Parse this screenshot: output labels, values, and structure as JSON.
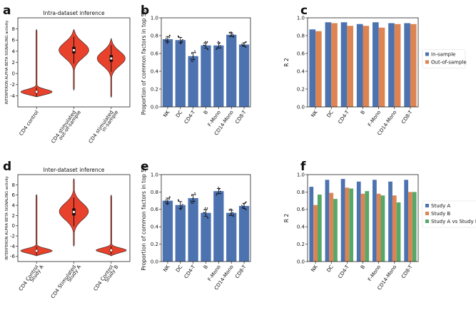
{
  "panel_labels": [
    "a",
    "b",
    "c",
    "d",
    "e",
    "f"
  ],
  "colors": {
    "violin": "#e8412c",
    "bar_blue": "#4c72b0",
    "bar_orange": "#dd8452",
    "bar_green": "#55a868",
    "box": "#111111",
    "median": "#ffffff"
  },
  "chart_data": [
    {
      "id": "a",
      "type": "violin",
      "title": "Intra-dataset inference",
      "ylabel": "INTERFERON ALPHA BETA SIGNALING activity",
      "ylim": [
        -6,
        10
      ],
      "yticks": [
        -4,
        -2,
        0,
        2,
        4,
        6,
        8
      ],
      "categories": [
        "CD4 control",
        "CD4 stimulated out-of-sample",
        "CD4 stimulated in-sample"
      ],
      "category_lines": [
        [
          "CD4 control"
        ],
        [
          "CD4 stimulated",
          "out-of-sample"
        ],
        [
          "CD4 stimulated",
          "in-sample"
        ]
      ],
      "violins": [
        {
          "min": -4.2,
          "max": 7.9,
          "median": -3.3,
          "q1": -3.5,
          "q3": -3.1,
          "mode": -3.3,
          "maxwidth": 0.85,
          "sigma": 0.45
        },
        {
          "min": -3.0,
          "max": 7.9,
          "median": 4.2,
          "q1": 3.6,
          "q3": 4.8,
          "mode": 4.2,
          "maxwidth": 0.8,
          "sigma": 1.4
        },
        {
          "min": -4.3,
          "max": 6.3,
          "median": 2.7,
          "q1": 2.1,
          "q3": 3.3,
          "mode": 2.7,
          "maxwidth": 0.75,
          "sigma": 1.3
        }
      ]
    },
    {
      "id": "b",
      "type": "bar",
      "ylabel": "Proportion of common factors in top 50",
      "ylim": [
        0,
        1.0
      ],
      "yticks": [
        0.0,
        0.2,
        0.4,
        0.6,
        0.8,
        1.0
      ],
      "categories": [
        "NK",
        "DC",
        "CD4-T",
        "B",
        "F-Mono",
        "CD14-Mono",
        "CD8-T"
      ],
      "values": [
        0.76,
        0.75,
        0.57,
        0.69,
        0.69,
        0.81,
        0.7
      ],
      "errors": [
        0.03,
        0.03,
        0.04,
        0.03,
        0.03,
        0.02,
        0.02
      ]
    },
    {
      "id": "c",
      "type": "bar",
      "ylabel": "R 2",
      "ylim": [
        0,
        1.0
      ],
      "yticks": [
        0.0,
        0.2,
        0.4,
        0.6,
        0.8,
        1.0
      ],
      "categories": [
        "NK",
        "DC",
        "CD4-T",
        "B",
        "F-Mono",
        "CD14-Mono",
        "CD8-T"
      ],
      "series": [
        {
          "name": "In-sample",
          "values": [
            0.87,
            0.95,
            0.95,
            0.93,
            0.95,
            0.94,
            0.94
          ]
        },
        {
          "name": "Out-of-sample",
          "values": [
            0.85,
            0.94,
            0.91,
            0.91,
            0.89,
            0.93,
            0.93
          ]
        }
      ],
      "legend": "center-right"
    },
    {
      "id": "d",
      "type": "violin",
      "title": "Inter-dataset inference",
      "ylabel": "INTERFERON ALPHA BETA SIGNALING activity",
      "ylim": [
        -7,
        10
      ],
      "yticks": [
        -6,
        -4,
        -2,
        0,
        2,
        4,
        6,
        8
      ],
      "categories": [
        "CD4 Control Study A",
        "CD4 Stimulated Study A",
        "CD4 Control Study B"
      ],
      "category_lines": [
        [
          "CD4 Control",
          "Study A"
        ],
        [
          "CD4 Stimulated",
          "Study A"
        ],
        [
          "CD4 Control",
          "Study B"
        ]
      ],
      "violins": [
        {
          "min": -5.9,
          "max": 6.1,
          "median": -4.9,
          "q1": -5.1,
          "q3": -4.7,
          "mode": -4.9,
          "maxwidth": 0.85,
          "sigma": 0.45
        },
        {
          "min": -4.0,
          "max": 9.2,
          "median": 2.7,
          "q1": 2.0,
          "q3": 3.4,
          "mode": 2.8,
          "maxwidth": 0.78,
          "sigma": 1.6
        },
        {
          "min": -5.9,
          "max": 6.0,
          "median": -4.8,
          "q1": -5.0,
          "q3": -4.6,
          "mode": -4.8,
          "maxwidth": 0.82,
          "sigma": 0.45
        }
      ]
    },
    {
      "id": "e",
      "type": "bar",
      "ylabel": "Proportion of common factors in top 50",
      "ylim": [
        0,
        1.0
      ],
      "yticks": [
        0.0,
        0.2,
        0.4,
        0.6,
        0.8,
        1.0
      ],
      "categories": [
        "NK",
        "DC",
        "CD4-T",
        "B",
        "F-Mono",
        "CD14-Mono",
        "CD8-T"
      ],
      "values": [
        0.7,
        0.65,
        0.73,
        0.56,
        0.81,
        0.56,
        0.64
      ],
      "errors": [
        0.03,
        0.04,
        0.04,
        0.04,
        0.03,
        0.03,
        0.03
      ]
    },
    {
      "id": "f",
      "type": "bar",
      "ylabel": "R 2",
      "ylim": [
        0,
        1.0
      ],
      "yticks": [
        0.0,
        0.2,
        0.4,
        0.6,
        0.8,
        1.0
      ],
      "categories": [
        "NK",
        "DC",
        "CD4-T",
        "B",
        "F-Mono",
        "CD14-Mono",
        "CD8-T"
      ],
      "series": [
        {
          "name": "Study A",
          "values": [
            0.86,
            0.94,
            0.95,
            0.92,
            0.94,
            0.92,
            0.94
          ]
        },
        {
          "name": "Study B",
          "values": [
            0.65,
            0.79,
            0.85,
            0.78,
            0.78,
            0.76,
            0.8
          ]
        },
        {
          "name": "Study A vs Study B",
          "values": [
            0.77,
            0.72,
            0.84,
            0.81,
            0.76,
            0.68,
            0.8
          ]
        }
      ],
      "legend": "center-right"
    }
  ]
}
